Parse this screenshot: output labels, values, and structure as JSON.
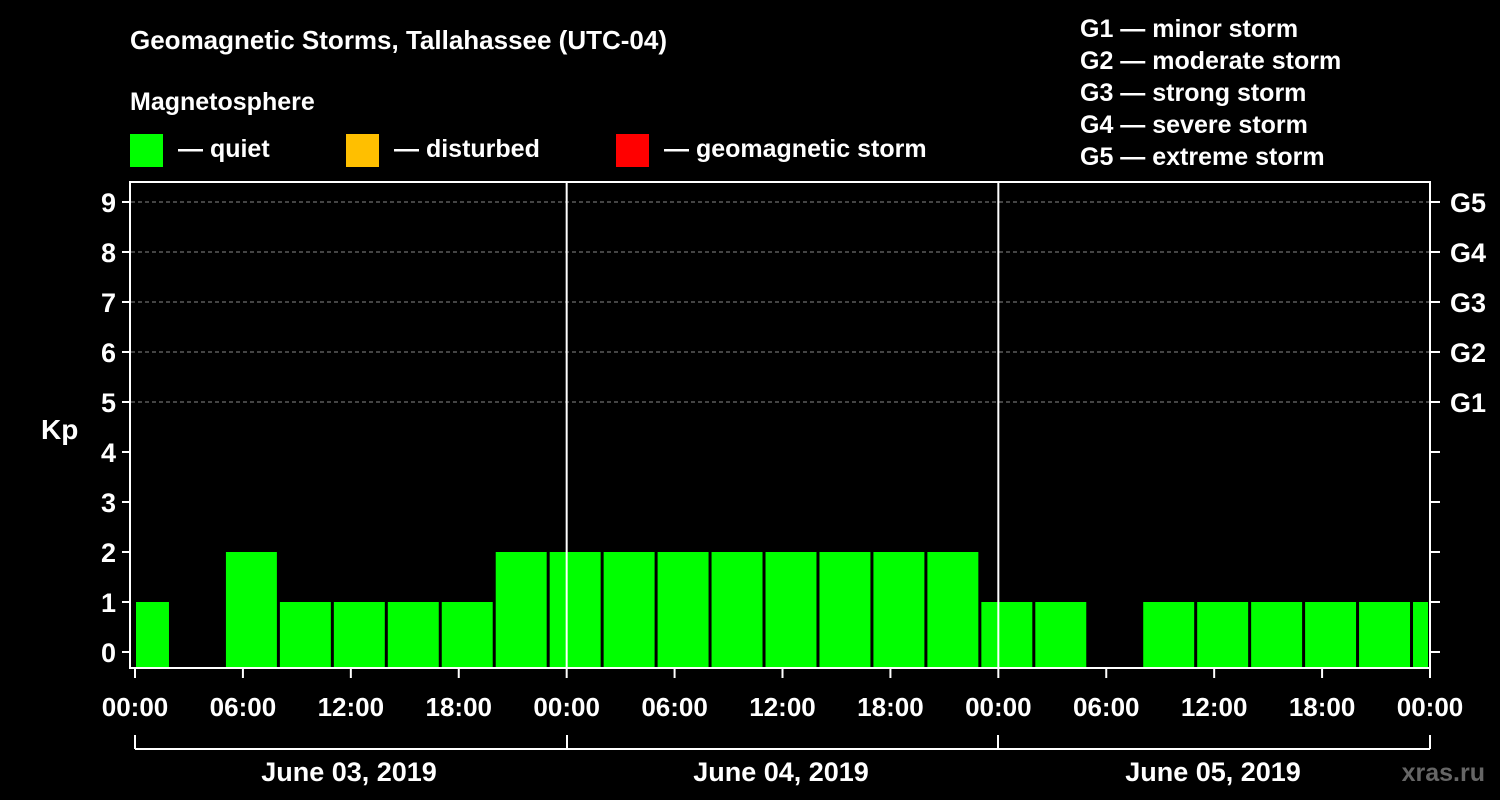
{
  "chart_data": {
    "type": "bar",
    "title": "Geomagnetic Storms, Tallahassee (UTC-04)",
    "legend_heading": "Magnetosphere",
    "legend": [
      {
        "label": "— quiet",
        "color": "#00ff00"
      },
      {
        "label": "— disturbed",
        "color": "#ffbf00"
      },
      {
        "label": "— geomagnetic storm",
        "color": "#ff0000"
      }
    ],
    "g_scale": [
      "G1 — minor storm",
      "G2 — moderate storm",
      "G3 — strong storm",
      "G4 — severe storm",
      "G5 — extreme storm"
    ],
    "ylabel": "Kp",
    "ylim": [
      0,
      9
    ],
    "y_ticks": [
      "0",
      "1",
      "2",
      "3",
      "4",
      "5",
      "6",
      "7",
      "8",
      "9"
    ],
    "right_ticks": [
      {
        "kp": 5,
        "label": "G1"
      },
      {
        "kp": 6,
        "label": "G2"
      },
      {
        "kp": 7,
        "label": "G3"
      },
      {
        "kp": 8,
        "label": "G4"
      },
      {
        "kp": 9,
        "label": "G5"
      }
    ],
    "grid_levels": [
      5,
      6,
      7,
      8,
      9
    ],
    "x_range_hours": [
      0,
      72
    ],
    "x_ticks": [
      "00:00",
      "06:00",
      "12:00",
      "18:00",
      "00:00",
      "06:00",
      "12:00",
      "18:00",
      "00:00",
      "06:00",
      "12:00",
      "18:00",
      "00:00"
    ],
    "days": [
      "June 03, 2019",
      "June 04, 2019",
      "June 05, 2019"
    ],
    "bars": [
      {
        "start_hour": 0,
        "end_hour": 2,
        "kp": 1
      },
      {
        "start_hour": 2,
        "end_hour": 5,
        "kp": 0
      },
      {
        "start_hour": 5,
        "end_hour": 8,
        "kp": 2
      },
      {
        "start_hour": 8,
        "end_hour": 11,
        "kp": 1
      },
      {
        "start_hour": 11,
        "end_hour": 14,
        "kp": 1
      },
      {
        "start_hour": 14,
        "end_hour": 17,
        "kp": 1
      },
      {
        "start_hour": 17,
        "end_hour": 20,
        "kp": 1
      },
      {
        "start_hour": 20,
        "end_hour": 23,
        "kp": 2
      },
      {
        "start_hour": 23,
        "end_hour": 26,
        "kp": 2
      },
      {
        "start_hour": 26,
        "end_hour": 29,
        "kp": 2
      },
      {
        "start_hour": 29,
        "end_hour": 32,
        "kp": 2
      },
      {
        "start_hour": 32,
        "end_hour": 35,
        "kp": 2
      },
      {
        "start_hour": 35,
        "end_hour": 38,
        "kp": 2
      },
      {
        "start_hour": 38,
        "end_hour": 41,
        "kp": 2
      },
      {
        "start_hour": 41,
        "end_hour": 44,
        "kp": 2
      },
      {
        "start_hour": 44,
        "end_hour": 47,
        "kp": 2
      },
      {
        "start_hour": 47,
        "end_hour": 50,
        "kp": 1
      },
      {
        "start_hour": 50,
        "end_hour": 53,
        "kp": 1
      },
      {
        "start_hour": 53,
        "end_hour": 56,
        "kp": 0
      },
      {
        "start_hour": 56,
        "end_hour": 59,
        "kp": 1
      },
      {
        "start_hour": 59,
        "end_hour": 62,
        "kp": 1
      },
      {
        "start_hour": 62,
        "end_hour": 65,
        "kp": 1
      },
      {
        "start_hour": 65,
        "end_hour": 68,
        "kp": 1
      },
      {
        "start_hour": 68,
        "end_hour": 71,
        "kp": 1
      },
      {
        "start_hour": 71,
        "end_hour": 72,
        "kp": 1
      }
    ],
    "watermark": "xras.ru"
  }
}
